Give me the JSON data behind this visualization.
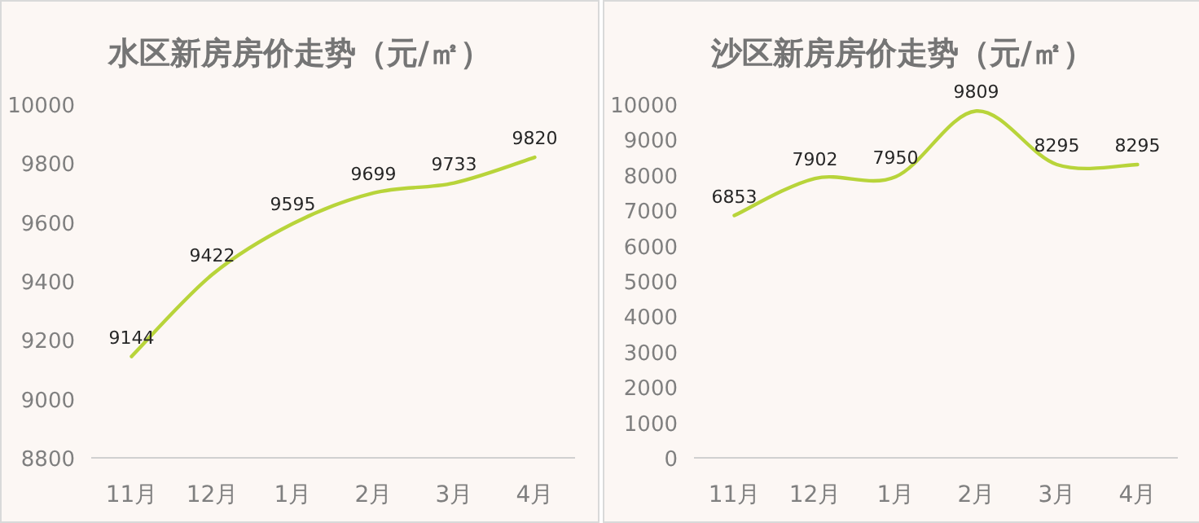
{
  "chart_data": [
    {
      "type": "line",
      "title": "水区新房房价走势（元/㎡）",
      "categories": [
        "11月",
        "12月",
        "1月",
        "2月",
        "3月",
        "4月"
      ],
      "series": [
        {
          "color": "#b8d43a",
          "values": [
            9144,
            9422,
            9595,
            9699,
            9733,
            9820
          ]
        }
      ],
      "ylim": [
        8800,
        10000
      ],
      "yticks": [
        8800,
        9000,
        9200,
        9400,
        9600,
        9800,
        10000
      ],
      "data_labels": true,
      "grid": false
    },
    {
      "type": "line",
      "title": "沙区新房房价走势（元/㎡）",
      "categories": [
        "11月",
        "12月",
        "1月",
        "2月",
        "3月",
        "4月"
      ],
      "series": [
        {
          "color": "#b8d43a",
          "values": [
            6853,
            7902,
            7950,
            9809,
            8295,
            8295
          ]
        }
      ],
      "ylim": [
        0,
        10000
      ],
      "yticks": [
        0,
        1000,
        2000,
        3000,
        4000,
        5000,
        6000,
        7000,
        8000,
        9000,
        10000
      ],
      "data_labels": true,
      "grid": false
    }
  ]
}
